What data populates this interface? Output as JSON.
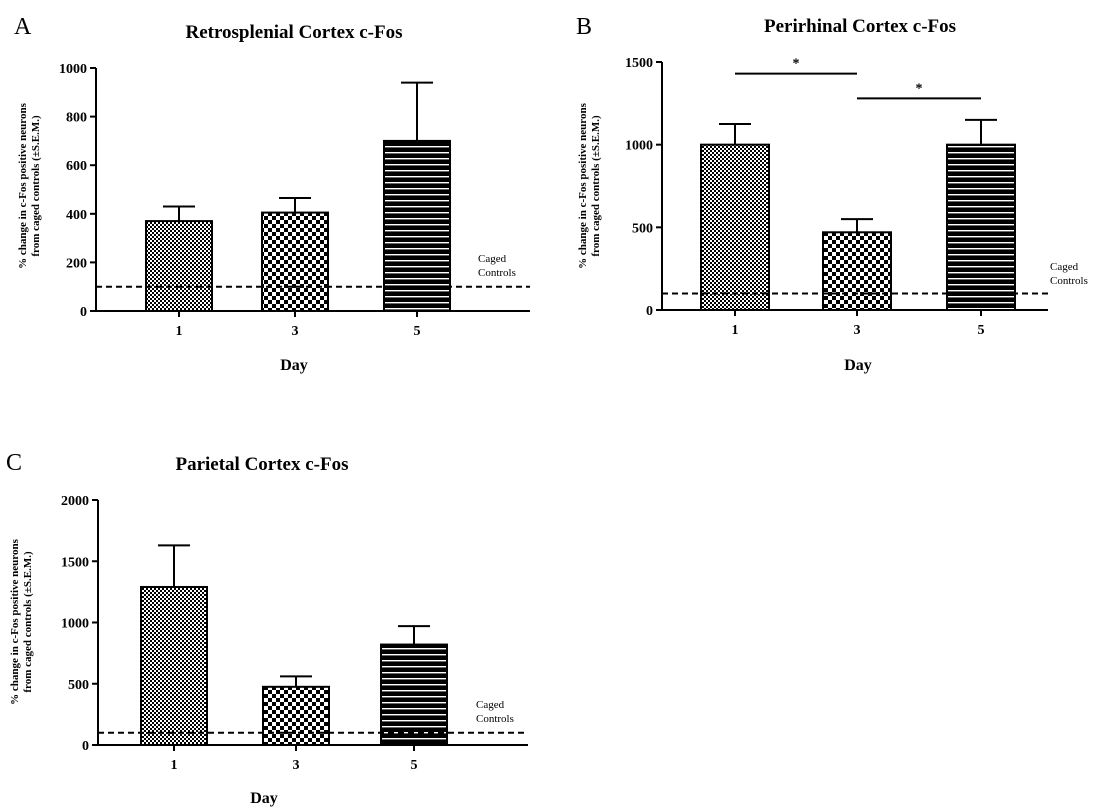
{
  "figure": {
    "panels": [
      {
        "letter": "A"
      },
      {
        "letter": "B"
      },
      {
        "letter": "C"
      }
    ]
  },
  "chart_data": [
    {
      "type": "bar",
      "panel": "A",
      "title": "Retrosplenial Cortex c-Fos",
      "xlabel": "Day",
      "ylabel": "% change in c-Fos positive neurons\nfrom caged controls (±S.E.M.)",
      "categories": [
        "1",
        "3",
        "5"
      ],
      "values": [
        370,
        405,
        700
      ],
      "errors": [
        60,
        60,
        240
      ],
      "patterns": [
        "fine-check",
        "coarse-check",
        "horizontal-stripes"
      ],
      "ylim": [
        0,
        1000
      ],
      "yticks": [
        0,
        200,
        400,
        600,
        800,
        1000
      ],
      "reference_line": {
        "value": 100,
        "label_line1": "Caged",
        "label_line2": "Controls",
        "style": "dashed"
      },
      "significance": []
    },
    {
      "type": "bar",
      "panel": "B",
      "title": "Perirhinal Cortex c-Fos",
      "xlabel": "Day",
      "ylabel": "% change in c-Fos positive neurons\nfrom caged controls (±S.E.M.)",
      "categories": [
        "1",
        "3",
        "5"
      ],
      "values": [
        1000,
        470,
        1000
      ],
      "errors": [
        125,
        80,
        150
      ],
      "patterns": [
        "fine-check",
        "coarse-check",
        "horizontal-stripes"
      ],
      "ylim": [
        0,
        1500
      ],
      "yticks": [
        0,
        500,
        1000,
        1500
      ],
      "reference_line": {
        "value": 100,
        "label_line1": "Caged",
        "label_line2": "Controls",
        "style": "dashed"
      },
      "significance": [
        {
          "from": "1",
          "to": "3",
          "y": 1430,
          "label": "*"
        },
        {
          "from": "3",
          "to": "5",
          "y": 1280,
          "label": "*"
        }
      ]
    },
    {
      "type": "bar",
      "panel": "C",
      "title": "Parietal Cortex c-Fos",
      "xlabel": "Day",
      "ylabel": "% change in c-Fos positive neurons\nfrom caged controls (±S.E.M.)",
      "categories": [
        "1",
        "3",
        "5"
      ],
      "values": [
        1290,
        475,
        820
      ],
      "errors": [
        340,
        85,
        150
      ],
      "patterns": [
        "fine-check",
        "coarse-check",
        "horizontal-stripes"
      ],
      "ylim": [
        0,
        2000
      ],
      "yticks": [
        0,
        500,
        1000,
        1500,
        2000
      ],
      "reference_line": {
        "value": 100,
        "label_line1": "Caged",
        "label_line2": "Controls",
        "style": "dashed"
      },
      "significance": []
    }
  ]
}
